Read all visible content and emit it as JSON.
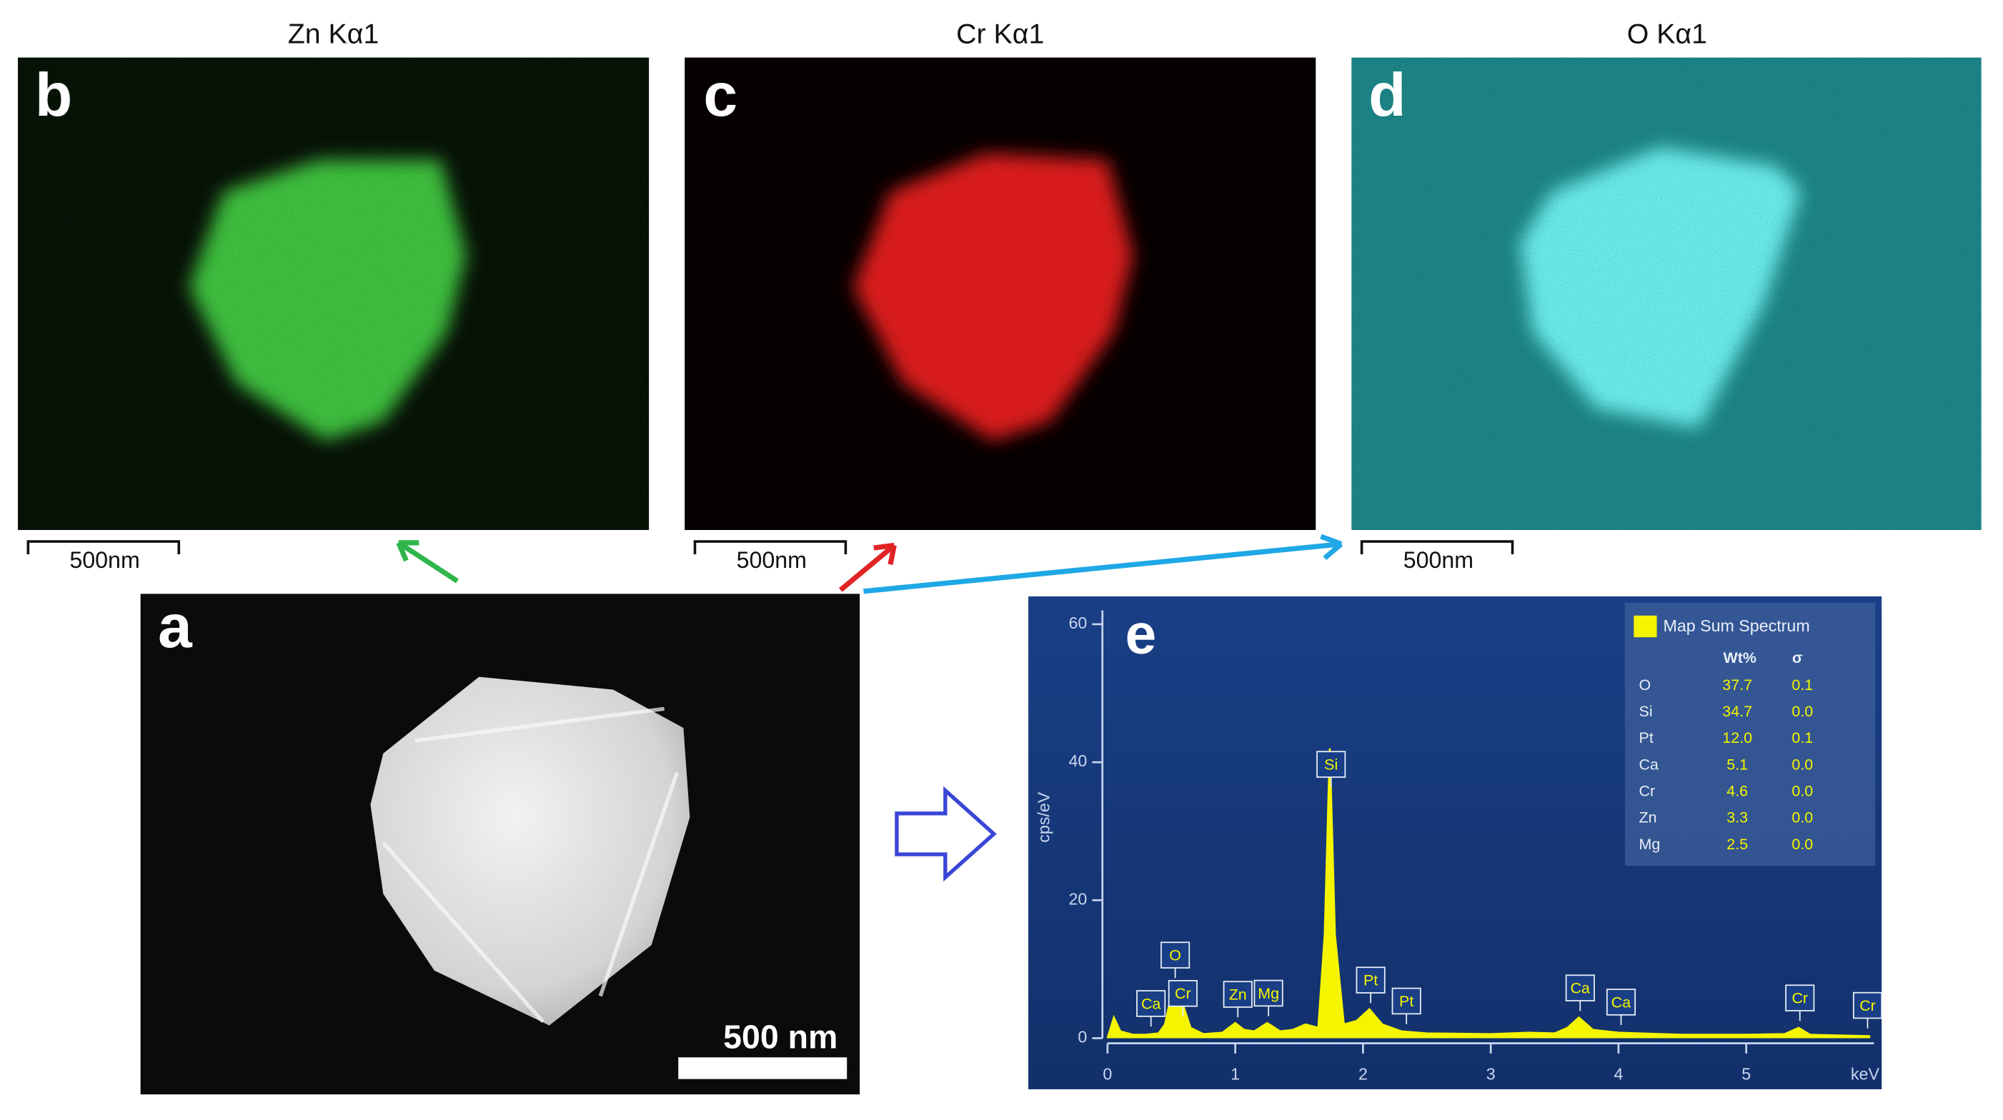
{
  "panels": [
    {
      "letter": "b",
      "title": "Zn Kα1",
      "scale_bar": "500nm"
    },
    {
      "letter": "c",
      "title": "Cr Kα1",
      "scale_bar": "500nm"
    },
    {
      "letter": "d",
      "title": "O Kα1",
      "scale_bar": "500nm"
    }
  ],
  "panel_a": {
    "letter": "a",
    "scale_bar": "500 nm"
  },
  "chart_data": {
    "type": "area",
    "panel_label": "e",
    "xlabel": "keV",
    "ylabel": "cps/eV",
    "color": "#f5f500",
    "x": [
      0,
      0.05,
      0.1,
      0.2,
      0.3,
      0.4,
      0.45,
      0.52,
      0.57,
      0.65,
      0.75,
      0.9,
      1.0,
      1.07,
      1.15,
      1.25,
      1.35,
      1.45,
      1.55,
      1.65,
      1.7,
      1.74,
      1.78,
      1.85,
      1.95,
      2.05,
      2.15,
      2.3,
      2.5,
      3.0,
      3.3,
      3.5,
      3.6,
      3.69,
      3.8,
      4.0,
      4.5,
      5.0,
      5.3,
      5.41,
      5.5,
      5.97
    ],
    "values": [
      0,
      3,
      1,
      0.5,
      0.5,
      0.7,
      2,
      8,
      6,
      1.5,
      0.6,
      0.8,
      2.2,
      1.2,
      1,
      2.2,
      1,
      1.2,
      2,
      1.5,
      15,
      42,
      15,
      2,
      2.5,
      4.2,
      2,
      1,
      0.7,
      0.6,
      0.8,
      0.7,
      1.5,
      3,
      1.2,
      0.8,
      0.5,
      0.5,
      0.6,
      1.5,
      0.5,
      0.3
    ],
    "xlim": [
      0,
      6
    ],
    "ylim": [
      0,
      62
    ],
    "xticks": [
      0,
      1,
      2,
      3,
      4,
      5
    ],
    "yticks": [
      0,
      20,
      40,
      60
    ],
    "peaks": [
      {
        "label": "Ca",
        "x": 0.34
      },
      {
        "label": "O",
        "x": 0.53
      },
      {
        "label": "Cr",
        "x": 0.59
      },
      {
        "label": "Zn",
        "x": 1.02
      },
      {
        "label": "Mg",
        "x": 1.26
      },
      {
        "label": "Si",
        "x": 1.75
      },
      {
        "label": "Pt",
        "x": 2.06
      },
      {
        "label": "Pt",
        "x": 2.34
      },
      {
        "label": "Ca",
        "x": 3.7
      },
      {
        "label": "Ca",
        "x": 4.02
      },
      {
        "label": "Cr",
        "x": 5.42
      },
      {
        "label": "Cr",
        "x": 5.95
      }
    ],
    "legend_title": "Map Sum Spectrum",
    "table": {
      "header": [
        "Wt%",
        "σ"
      ],
      "rows": [
        [
          "O",
          "37.7",
          "0.1"
        ],
        [
          "Si",
          "34.7",
          "0.0"
        ],
        [
          "Pt",
          "12.0",
          "0.1"
        ],
        [
          "Ca",
          "5.1",
          "0.0"
        ],
        [
          "Cr",
          "4.6",
          "0.0"
        ],
        [
          "Zn",
          "3.3",
          "0.0"
        ],
        [
          "Mg",
          "2.5",
          "0.0"
        ]
      ]
    }
  }
}
